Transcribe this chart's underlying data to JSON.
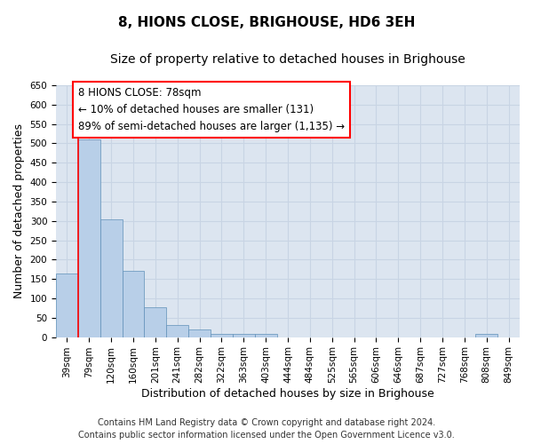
{
  "title": "8, HIONS CLOSE, BRIGHOUSE, HD6 3EH",
  "subtitle": "Size of property relative to detached houses in Brighouse",
  "xlabel": "Distribution of detached houses by size in Brighouse",
  "ylabel": "Number of detached properties",
  "categories": [
    "39sqm",
    "79sqm",
    "120sqm",
    "160sqm",
    "201sqm",
    "241sqm",
    "282sqm",
    "322sqm",
    "363sqm",
    "403sqm",
    "444sqm",
    "484sqm",
    "525sqm",
    "565sqm",
    "606sqm",
    "646sqm",
    "687sqm",
    "727sqm",
    "768sqm",
    "808sqm",
    "849sqm"
  ],
  "values": [
    165,
    510,
    303,
    170,
    78,
    32,
    20,
    8,
    8,
    8,
    0,
    0,
    0,
    0,
    0,
    0,
    0,
    0,
    0,
    8,
    0
  ],
  "bar_color": "#b8cfe8",
  "bar_edge_color": "#6090b8",
  "bar_linewidth": 0.5,
  "grid_color": "#c8d4e4",
  "background_color": "#dce5f0",
  "red_line_x": 0.5,
  "annotation_line1": "8 HIONS CLOSE: 78sqm",
  "annotation_line2": "← 10% of detached houses are smaller (131)",
  "annotation_line3": "89% of semi-detached houses are larger (1,135) →",
  "ylim": [
    0,
    650
  ],
  "yticks": [
    0,
    50,
    100,
    150,
    200,
    250,
    300,
    350,
    400,
    450,
    500,
    550,
    600,
    650
  ],
  "footer_line1": "Contains HM Land Registry data © Crown copyright and database right 2024.",
  "footer_line2": "Contains public sector information licensed under the Open Government Licence v3.0.",
  "title_fontsize": 11,
  "subtitle_fontsize": 10,
  "axis_label_fontsize": 9,
  "tick_fontsize": 7.5,
  "annotation_fontsize": 8.5,
  "footer_fontsize": 7
}
